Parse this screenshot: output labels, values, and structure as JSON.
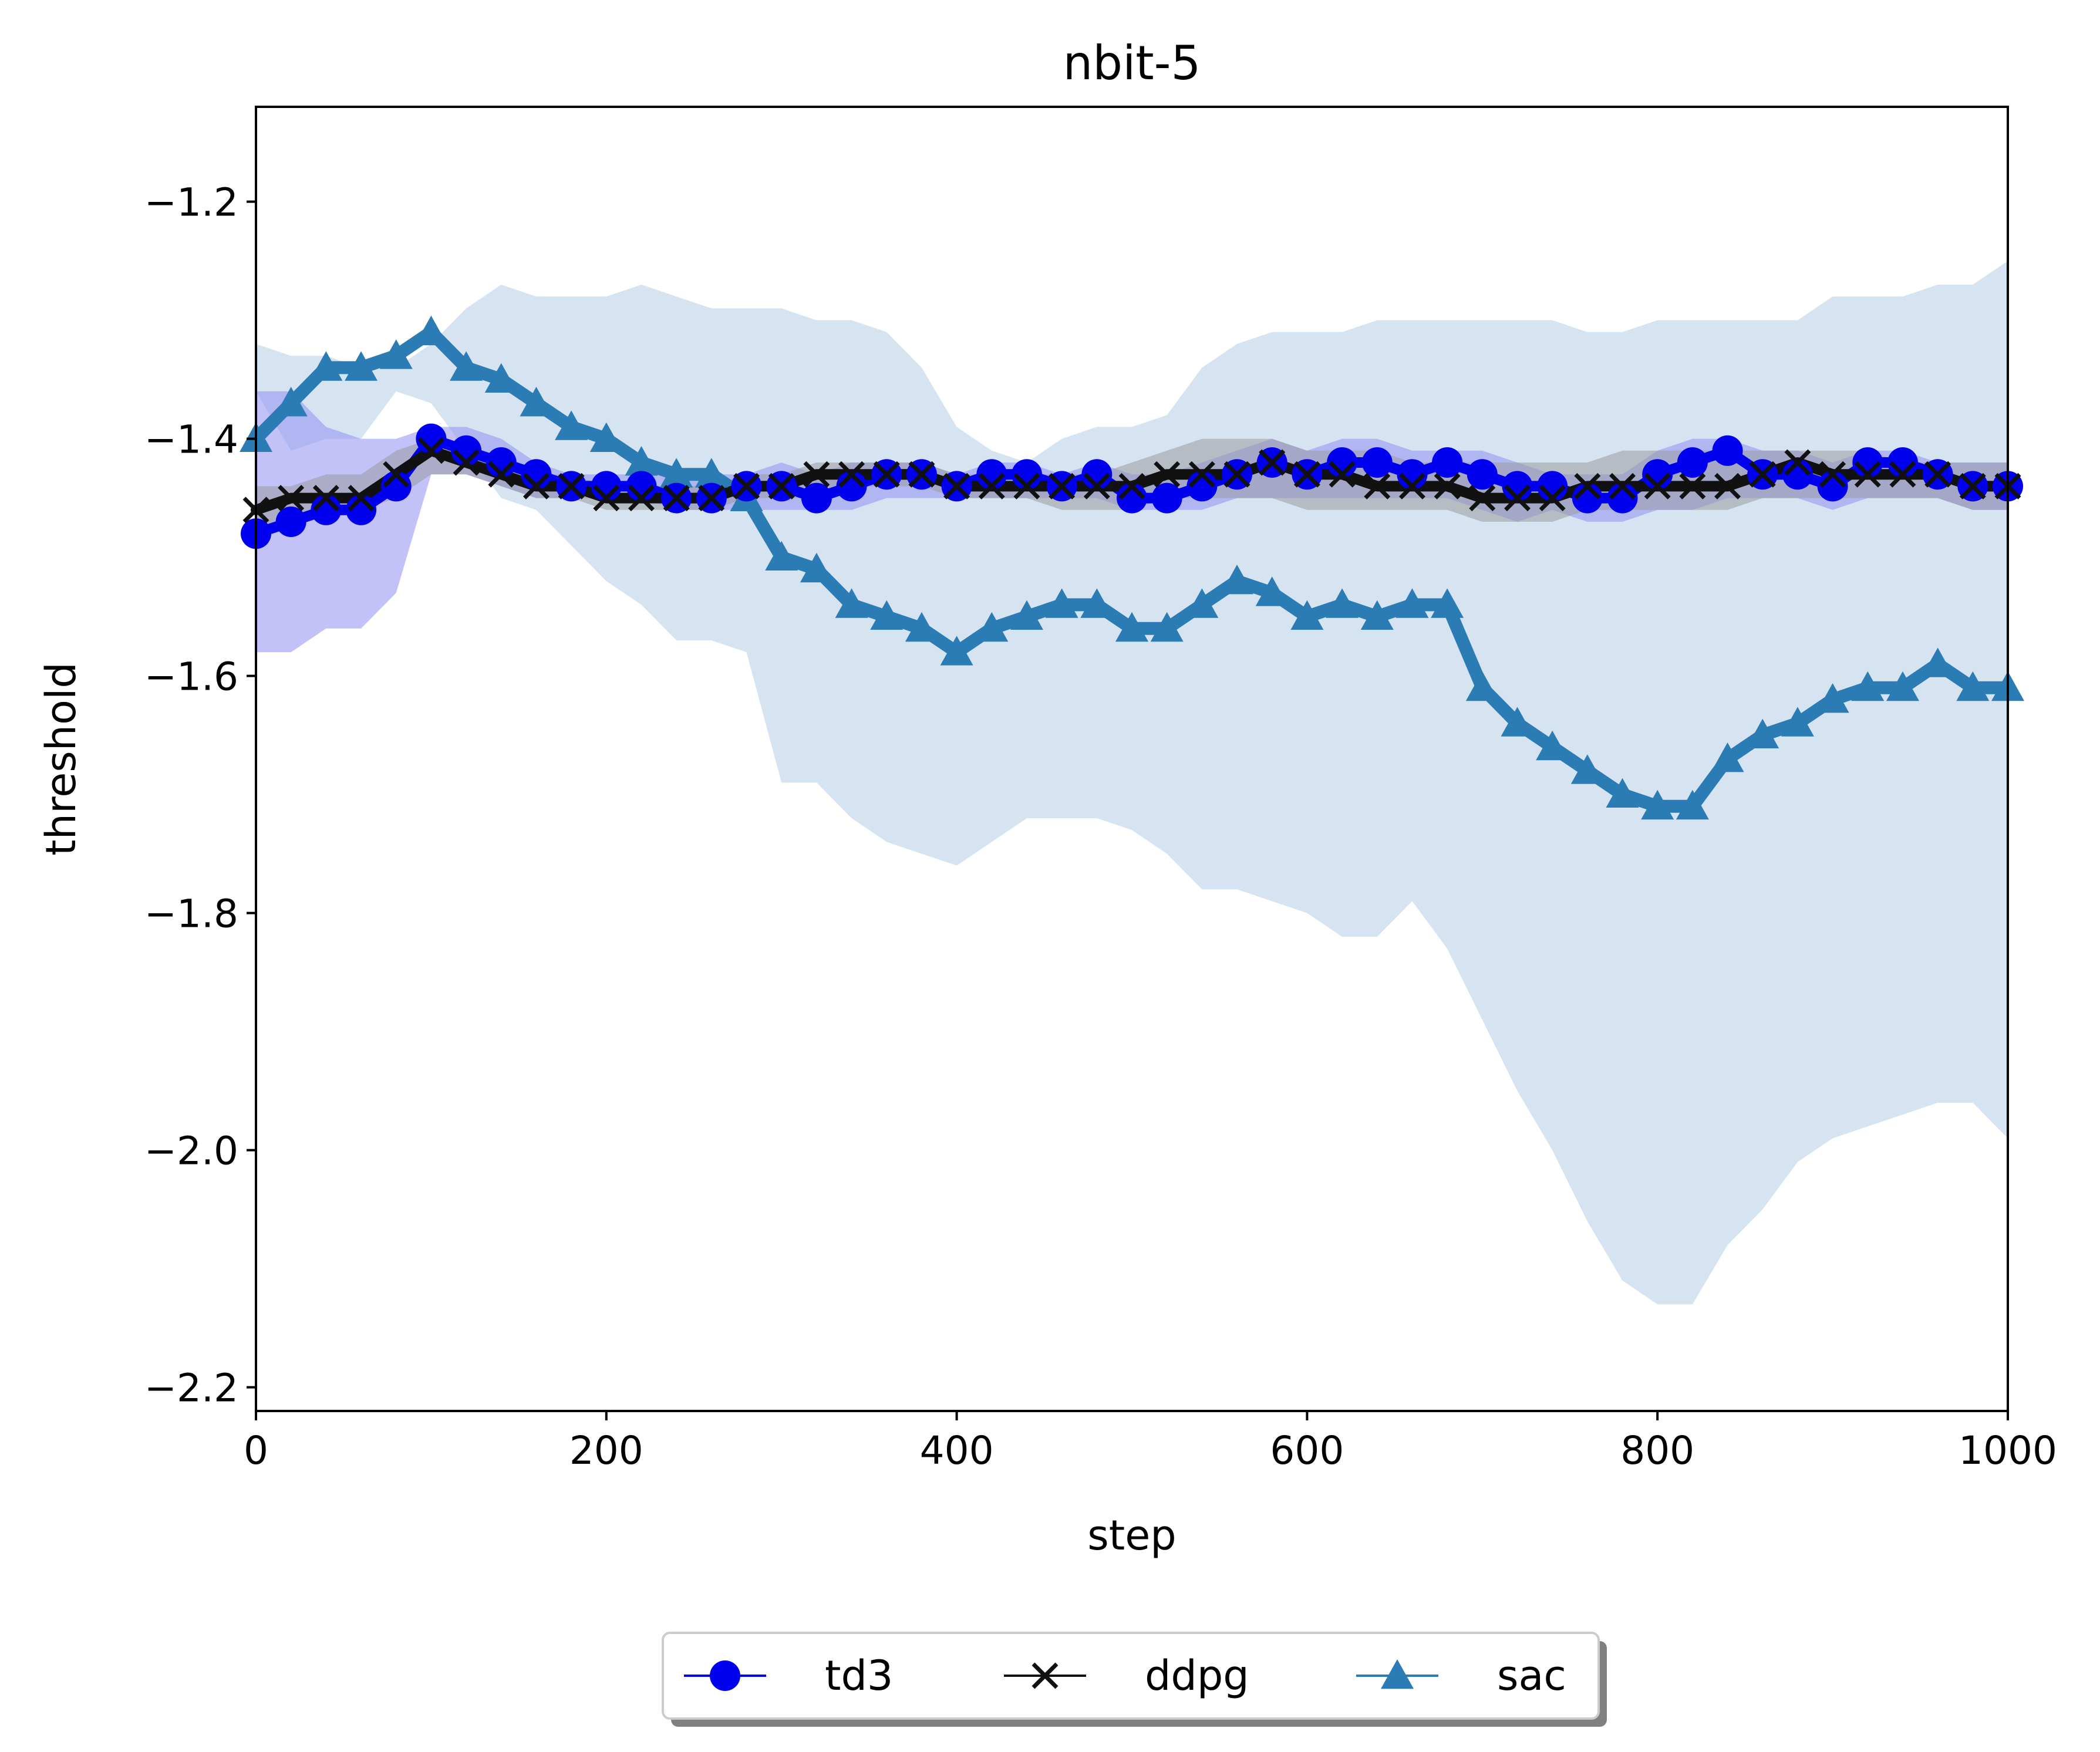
{
  "chart_data": {
    "type": "line",
    "title": "nbit-5",
    "xlabel": "step",
    "ylabel": "threshold",
    "xlim": [
      0,
      1000
    ],
    "ylim": [
      -2.22,
      -1.12
    ],
    "xticks": [
      {
        "value": 0,
        "label": "0"
      },
      {
        "value": 200,
        "label": "200"
      },
      {
        "value": 400,
        "label": "400"
      },
      {
        "value": 600,
        "label": "600"
      },
      {
        "value": 800,
        "label": "800"
      },
      {
        "value": 1000,
        "label": "1000"
      }
    ],
    "yticks": [
      {
        "value": -2.2,
        "label": "−2.2"
      },
      {
        "value": -2.0,
        "label": "−2.0"
      },
      {
        "value": -1.8,
        "label": "−1.8"
      },
      {
        "value": -1.6,
        "label": "−1.6"
      },
      {
        "value": -1.4,
        "label": "−1.4"
      },
      {
        "value": -1.2,
        "label": "−1.2"
      }
    ],
    "grid": false,
    "legend": {
      "position": "bottom-center",
      "columns": 3
    },
    "series": [
      {
        "name": "sac",
        "color": "#2b7bb5",
        "band_color": "#d5e4f0",
        "marker": "triangle",
        "x": [
          0,
          20,
          40,
          60,
          80,
          100,
          120,
          140,
          160,
          180,
          200,
          220,
          240,
          260,
          280,
          300,
          320,
          340,
          360,
          380,
          400,
          420,
          440,
          460,
          480,
          500,
          520,
          540,
          560,
          580,
          600,
          620,
          640,
          660,
          680,
          700,
          720,
          740,
          760,
          780,
          800,
          820,
          840,
          860,
          880,
          900,
          920,
          940,
          960,
          980,
          1000
        ],
        "y": [
          -1.4,
          -1.37,
          -1.34,
          -1.34,
          -1.33,
          -1.31,
          -1.34,
          -1.35,
          -1.37,
          -1.39,
          -1.4,
          -1.42,
          -1.43,
          -1.43,
          -1.45,
          -1.5,
          -1.51,
          -1.54,
          -1.55,
          -1.56,
          -1.58,
          -1.56,
          -1.55,
          -1.54,
          -1.54,
          -1.56,
          -1.56,
          -1.54,
          -1.52,
          -1.53,
          -1.55,
          -1.54,
          -1.55,
          -1.54,
          -1.54,
          -1.61,
          -1.64,
          -1.66,
          -1.68,
          -1.7,
          -1.71,
          -1.71,
          -1.67,
          -1.65,
          -1.64,
          -1.62,
          -1.61,
          -1.61,
          -1.59,
          -1.61,
          -1.61
        ],
        "upper": [
          -1.32,
          -1.33,
          -1.33,
          -1.34,
          -1.34,
          -1.32,
          -1.29,
          -1.27,
          -1.28,
          -1.28,
          -1.28,
          -1.27,
          -1.28,
          -1.29,
          -1.29,
          -1.29,
          -1.3,
          -1.3,
          -1.31,
          -1.34,
          -1.39,
          -1.41,
          -1.42,
          -1.4,
          -1.39,
          -1.39,
          -1.38,
          -1.34,
          -1.32,
          -1.31,
          -1.31,
          -1.31,
          -1.3,
          -1.3,
          -1.3,
          -1.3,
          -1.3,
          -1.3,
          -1.31,
          -1.31,
          -1.3,
          -1.3,
          -1.3,
          -1.3,
          -1.3,
          -1.28,
          -1.28,
          -1.28,
          -1.27,
          -1.27,
          -1.25
        ],
        "lower": [
          -1.36,
          -1.41,
          -1.4,
          -1.4,
          -1.36,
          -1.37,
          -1.41,
          -1.45,
          -1.46,
          -1.49,
          -1.52,
          -1.54,
          -1.57,
          -1.57,
          -1.58,
          -1.69,
          -1.69,
          -1.72,
          -1.74,
          -1.75,
          -1.76,
          -1.74,
          -1.72,
          -1.72,
          -1.72,
          -1.73,
          -1.75,
          -1.78,
          -1.78,
          -1.79,
          -1.8,
          -1.82,
          -1.82,
          -1.79,
          -1.83,
          -1.89,
          -1.95,
          -2.0,
          -2.06,
          -2.11,
          -2.13,
          -2.13,
          -2.08,
          -2.05,
          -2.01,
          -1.99,
          -1.98,
          -1.97,
          -1.96,
          -1.96,
          -1.99
        ]
      },
      {
        "name": "td3",
        "color": "#0000ee",
        "band_color": "#8f8ff2",
        "marker": "circle",
        "x": [
          0,
          20,
          40,
          60,
          80,
          100,
          120,
          140,
          160,
          180,
          200,
          220,
          240,
          260,
          280,
          300,
          320,
          340,
          360,
          380,
          400,
          420,
          440,
          460,
          480,
          500,
          520,
          540,
          560,
          580,
          600,
          620,
          640,
          660,
          680,
          700,
          720,
          740,
          760,
          780,
          800,
          820,
          840,
          860,
          880,
          900,
          920,
          940,
          960,
          980,
          1000
        ],
        "y": [
          -1.48,
          -1.47,
          -1.46,
          -1.46,
          -1.44,
          -1.4,
          -1.41,
          -1.42,
          -1.43,
          -1.44,
          -1.44,
          -1.44,
          -1.45,
          -1.45,
          -1.44,
          -1.44,
          -1.45,
          -1.44,
          -1.43,
          -1.43,
          -1.44,
          -1.43,
          -1.43,
          -1.44,
          -1.43,
          -1.45,
          -1.45,
          -1.44,
          -1.43,
          -1.42,
          -1.43,
          -1.42,
          -1.42,
          -1.43,
          -1.42,
          -1.43,
          -1.44,
          -1.44,
          -1.45,
          -1.45,
          -1.43,
          -1.42,
          -1.41,
          -1.43,
          -1.43,
          -1.44,
          -1.42,
          -1.42,
          -1.43,
          -1.44,
          -1.44
        ],
        "upper": [
          -1.36,
          -1.36,
          -1.39,
          -1.4,
          -1.4,
          -1.39,
          -1.39,
          -1.4,
          -1.42,
          -1.43,
          -1.43,
          -1.43,
          -1.43,
          -1.43,
          -1.43,
          -1.42,
          -1.43,
          -1.42,
          -1.42,
          -1.42,
          -1.43,
          -1.42,
          -1.42,
          -1.43,
          -1.42,
          -1.43,
          -1.43,
          -1.42,
          -1.41,
          -1.4,
          -1.41,
          -1.4,
          -1.4,
          -1.41,
          -1.41,
          -1.41,
          -1.42,
          -1.43,
          -1.43,
          -1.43,
          -1.41,
          -1.4,
          -1.4,
          -1.41,
          -1.41,
          -1.42,
          -1.41,
          -1.41,
          -1.42,
          -1.42,
          -1.42
        ],
        "lower": [
          -1.58,
          -1.58,
          -1.56,
          -1.56,
          -1.53,
          -1.43,
          -1.43,
          -1.44,
          -1.45,
          -1.45,
          -1.45,
          -1.45,
          -1.46,
          -1.46,
          -1.46,
          -1.46,
          -1.46,
          -1.46,
          -1.45,
          -1.45,
          -1.45,
          -1.45,
          -1.45,
          -1.45,
          -1.45,
          -1.46,
          -1.46,
          -1.46,
          -1.45,
          -1.45,
          -1.45,
          -1.45,
          -1.45,
          -1.45,
          -1.45,
          -1.46,
          -1.47,
          -1.46,
          -1.47,
          -1.47,
          -1.46,
          -1.46,
          -1.45,
          -1.45,
          -1.45,
          -1.46,
          -1.45,
          -1.45,
          -1.45,
          -1.46,
          -1.46
        ]
      },
      {
        "name": "ddpg",
        "color": "#111111",
        "band_color": "#9a9aa0",
        "marker": "x",
        "x": [
          0,
          20,
          40,
          60,
          80,
          100,
          120,
          140,
          160,
          180,
          200,
          220,
          240,
          260,
          280,
          300,
          320,
          340,
          360,
          380,
          400,
          420,
          440,
          460,
          480,
          500,
          520,
          540,
          560,
          580,
          600,
          620,
          640,
          660,
          680,
          700,
          720,
          740,
          760,
          780,
          800,
          820,
          840,
          860,
          880,
          900,
          920,
          940,
          960,
          980,
          1000
        ],
        "y": [
          -1.46,
          -1.45,
          -1.45,
          -1.45,
          -1.43,
          -1.41,
          -1.42,
          -1.43,
          -1.44,
          -1.44,
          -1.45,
          -1.45,
          -1.45,
          -1.45,
          -1.44,
          -1.44,
          -1.43,
          -1.43,
          -1.43,
          -1.43,
          -1.44,
          -1.44,
          -1.44,
          -1.44,
          -1.44,
          -1.44,
          -1.43,
          -1.43,
          -1.43,
          -1.42,
          -1.43,
          -1.43,
          -1.44,
          -1.44,
          -1.44,
          -1.45,
          -1.45,
          -1.45,
          -1.44,
          -1.44,
          -1.44,
          -1.44,
          -1.44,
          -1.43,
          -1.42,
          -1.43,
          -1.43,
          -1.43,
          -1.43,
          -1.44,
          -1.44
        ],
        "upper": [
          -1.44,
          -1.44,
          -1.43,
          -1.43,
          -1.41,
          -1.4,
          -1.41,
          -1.42,
          -1.43,
          -1.43,
          -1.44,
          -1.44,
          -1.44,
          -1.44,
          -1.43,
          -1.43,
          -1.42,
          -1.42,
          -1.42,
          -1.42,
          -1.43,
          -1.43,
          -1.43,
          -1.43,
          -1.43,
          -1.42,
          -1.41,
          -1.4,
          -1.4,
          -1.4,
          -1.41,
          -1.41,
          -1.41,
          -1.42,
          -1.42,
          -1.42,
          -1.42,
          -1.42,
          -1.42,
          -1.41,
          -1.41,
          -1.41,
          -1.41,
          -1.41,
          -1.41,
          -1.41,
          -1.41,
          -1.42,
          -1.42,
          -1.42,
          -1.42
        ],
        "lower": [
          -1.48,
          -1.47,
          -1.46,
          -1.46,
          -1.45,
          -1.43,
          -1.43,
          -1.44,
          -1.45,
          -1.45,
          -1.46,
          -1.46,
          -1.46,
          -1.46,
          -1.45,
          -1.45,
          -1.45,
          -1.44,
          -1.44,
          -1.44,
          -1.45,
          -1.45,
          -1.45,
          -1.46,
          -1.46,
          -1.46,
          -1.45,
          -1.45,
          -1.45,
          -1.45,
          -1.46,
          -1.46,
          -1.46,
          -1.46,
          -1.46,
          -1.47,
          -1.47,
          -1.47,
          -1.46,
          -1.46,
          -1.46,
          -1.46,
          -1.46,
          -1.45,
          -1.45,
          -1.45,
          -1.45,
          -1.45,
          -1.45,
          -1.46,
          -1.46
        ]
      }
    ]
  }
}
